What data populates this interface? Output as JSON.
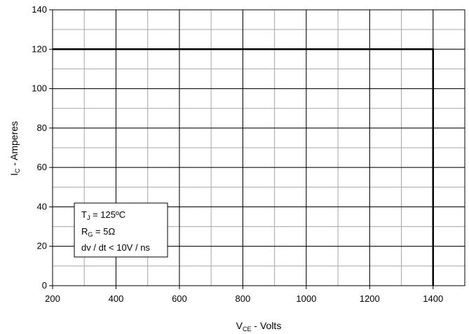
{
  "chart_data": {
    "type": "line",
    "title": "",
    "xlim": [
      200,
      1500
    ],
    "ylim": [
      0,
      140
    ],
    "x_major_ticks": [
      200,
      400,
      600,
      800,
      1000,
      1200,
      1400
    ],
    "x_minor_step": 100,
    "y_major_ticks": [
      0,
      20,
      40,
      60,
      80,
      100,
      120,
      140
    ],
    "y_minor_step": 10,
    "grid": true,
    "x_tick_labels": [
      "200",
      "400",
      "600",
      "800",
      "1000",
      "1200",
      "1400"
    ],
    "y_tick_labels": [
      "0",
      "20",
      "40",
      "60",
      "80",
      "100",
      "120",
      "140"
    ],
    "xlabel": {
      "main": "V",
      "sub": "CE",
      "rest": " - Volts"
    },
    "ylabel": {
      "main": "I",
      "sub": "C",
      "rest": " - Amperes"
    },
    "series": [
      {
        "x": [
          200,
          1400,
          1400
        ],
        "y": [
          120,
          120,
          0
        ]
      }
    ],
    "legend_placement": "bottom-left",
    "annotation": {
      "line1": {
        "main": "T",
        "sub": "J",
        "rest": " = 125ºC"
      },
      "line2": {
        "main": "R",
        "sub": "G",
        "rest": " = 5Ω"
      },
      "line3": "dv / dt < 10V / ns"
    }
  }
}
